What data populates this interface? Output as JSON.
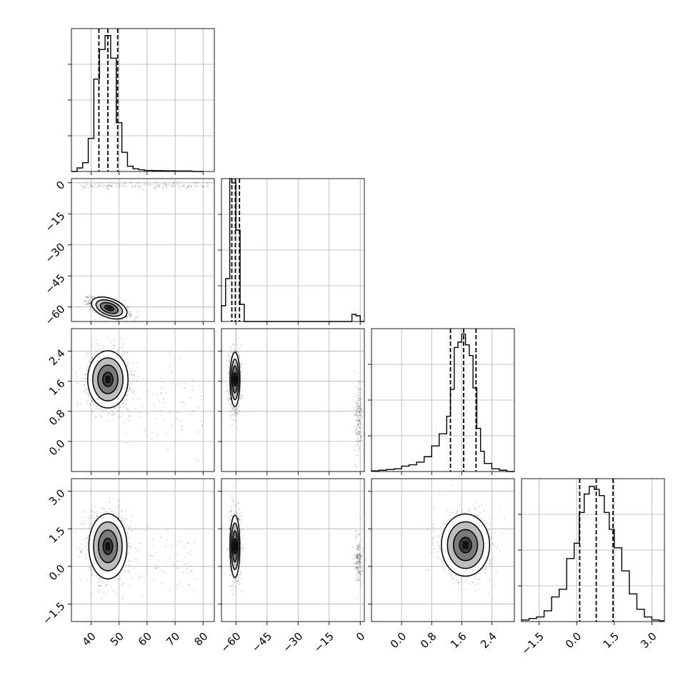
{
  "chart_data": {
    "type": "corner",
    "parameters": [
      {
        "ticks": [
          40,
          50,
          60,
          70,
          80
        ],
        "tick_labels": [
          "40",
          "50",
          "60",
          "70",
          "80"
        ],
        "range": [
          33,
          84
        ]
      },
      {
        "ticks": [
          -60,
          -45,
          -30,
          -15,
          0
        ],
        "tick_labels": [
          "−60",
          "−45",
          "−30",
          "−15",
          "0"
        ],
        "range": [
          -67,
          2
        ]
      },
      {
        "ticks": [
          0.0,
          0.8,
          1.6,
          2.4
        ],
        "tick_labels": [
          "0.0",
          "0.8",
          "1.6",
          "2.4"
        ],
        "range": [
          -0.8,
          3.0
        ]
      },
      {
        "ticks": [
          -1.5,
          0.0,
          1.5,
          3.0
        ],
        "tick_labels": [
          "−1.5",
          "0.0",
          "1.5",
          "3.0"
        ],
        "range": [
          -2.2,
          3.5
        ]
      }
    ],
    "histograms": [
      {
        "param": 0,
        "quantiles": [
          42.8,
          46.0,
          49.5
        ],
        "bin_edges": [
          33,
          35,
          37,
          39,
          41,
          43,
          45,
          47,
          49,
          51,
          53,
          55,
          57,
          59,
          62,
          66,
          70,
          76,
          80
        ],
        "counts": [
          0,
          2,
          5,
          19,
          53,
          70,
          78,
          65,
          28,
          11,
          3,
          1.5,
          1,
          0.6,
          0.5,
          0.4,
          0.3,
          0
        ],
        "ymax": 82
      },
      {
        "param": 1,
        "quantiles": [
          -62.0,
          -60.3,
          -58.3
        ],
        "bin_edges": [
          -67,
          -65,
          -63,
          -62,
          -60,
          -58,
          -56,
          -54,
          -4,
          -2,
          0,
          2
        ],
        "counts": [
          11,
          30,
          100,
          97,
          64,
          12,
          0,
          0,
          5,
          4,
          0
        ],
        "ymax": 100
      },
      {
        "param": 2,
        "quantiles": [
          1.3,
          1.65,
          1.98
        ],
        "bin_edges": [
          -0.8,
          -0.6,
          -0.4,
          -0.2,
          0.0,
          0.2,
          0.4,
          0.6,
          0.8,
          1.0,
          1.2,
          1.3,
          1.4,
          1.5,
          1.6,
          1.7,
          1.8,
          1.9,
          2.0,
          2.1,
          2.2,
          2.4,
          2.6,
          2.8,
          3.0
        ],
        "counts": [
          0.5,
          1,
          1.5,
          2,
          4,
          5,
          7,
          11,
          19,
          28,
          41,
          61,
          92,
          96,
          102,
          94,
          86,
          62,
          32,
          15,
          6,
          2,
          1,
          0
        ],
        "ymax": 106
      },
      {
        "param": 3,
        "quantiles": [
          0.12,
          0.78,
          1.45
        ],
        "bin_edges": [
          -2.2,
          -1.9,
          -1.6,
          -1.3,
          -1.0,
          -0.7,
          -0.4,
          -0.1,
          0.1,
          0.3,
          0.5,
          0.7,
          0.9,
          1.1,
          1.3,
          1.5,
          1.8,
          2.1,
          2.4,
          2.7,
          3.0,
          3.3,
          3.5
        ],
        "counts": [
          1,
          2,
          3,
          7,
          16,
          21,
          41,
          51,
          71,
          83,
          88,
          86,
          82,
          71,
          60,
          48,
          33,
          18,
          8,
          3,
          1,
          0.5
        ],
        "ymax": 93
      }
    ],
    "pair_plots": [
      {
        "x": 0,
        "y": 1,
        "center": [
          46.5,
          -60.5
        ],
        "sigma": [
          3.3,
          2.3
        ],
        "rho": -0.6,
        "extras": [
          {
            "x_range": [
              36,
              82
            ],
            "y_center": -1.5,
            "y_sigma": 0.8,
            "n": 160
          }
        ]
      },
      {
        "x": 0,
        "y": 2,
        "center": [
          46.0,
          1.65
        ],
        "sigma": [
          3.6,
          0.38
        ],
        "rho": 0.0,
        "extras": [
          {
            "x_range": [
              50,
              80
            ],
            "y_center": 1.0,
            "y_sigma": 0.7,
            "n": 90
          }
        ]
      },
      {
        "x": 1,
        "y": 2,
        "center": [
          -60.5,
          1.65
        ],
        "sigma": [
          1.2,
          0.36
        ],
        "rho": 0.0,
        "extras": [
          {
            "x_center": -0.8,
            "x_sigma": 0.9,
            "y_center": 0.65,
            "y_sigma": 0.5,
            "n": 180
          }
        ]
      },
      {
        "x": 0,
        "y": 3,
        "center": [
          46.0,
          0.8
        ],
        "sigma": [
          3.4,
          0.65
        ],
        "rho": 0.0,
        "extras": [
          {
            "x_range": [
              50,
              78
            ],
            "y_center": 0.3,
            "y_sigma": 0.6,
            "n": 90
          }
        ]
      },
      {
        "x": 1,
        "y": 3,
        "center": [
          -60.5,
          0.8
        ],
        "sigma": [
          1.2,
          0.62
        ],
        "rho": 0.0,
        "extras": [
          {
            "x_center": -0.8,
            "x_sigma": 0.9,
            "y_center": 0.3,
            "y_sigma": 0.5,
            "n": 170
          }
        ]
      },
      {
        "x": 2,
        "y": 3,
        "center": [
          1.7,
          0.85
        ],
        "sigma": [
          0.32,
          0.62
        ],
        "rho": 0.0,
        "extras": []
      }
    ],
    "contour_levels_sigma": [
      0.5,
      1.0,
      1.5,
      2.0
    ]
  }
}
